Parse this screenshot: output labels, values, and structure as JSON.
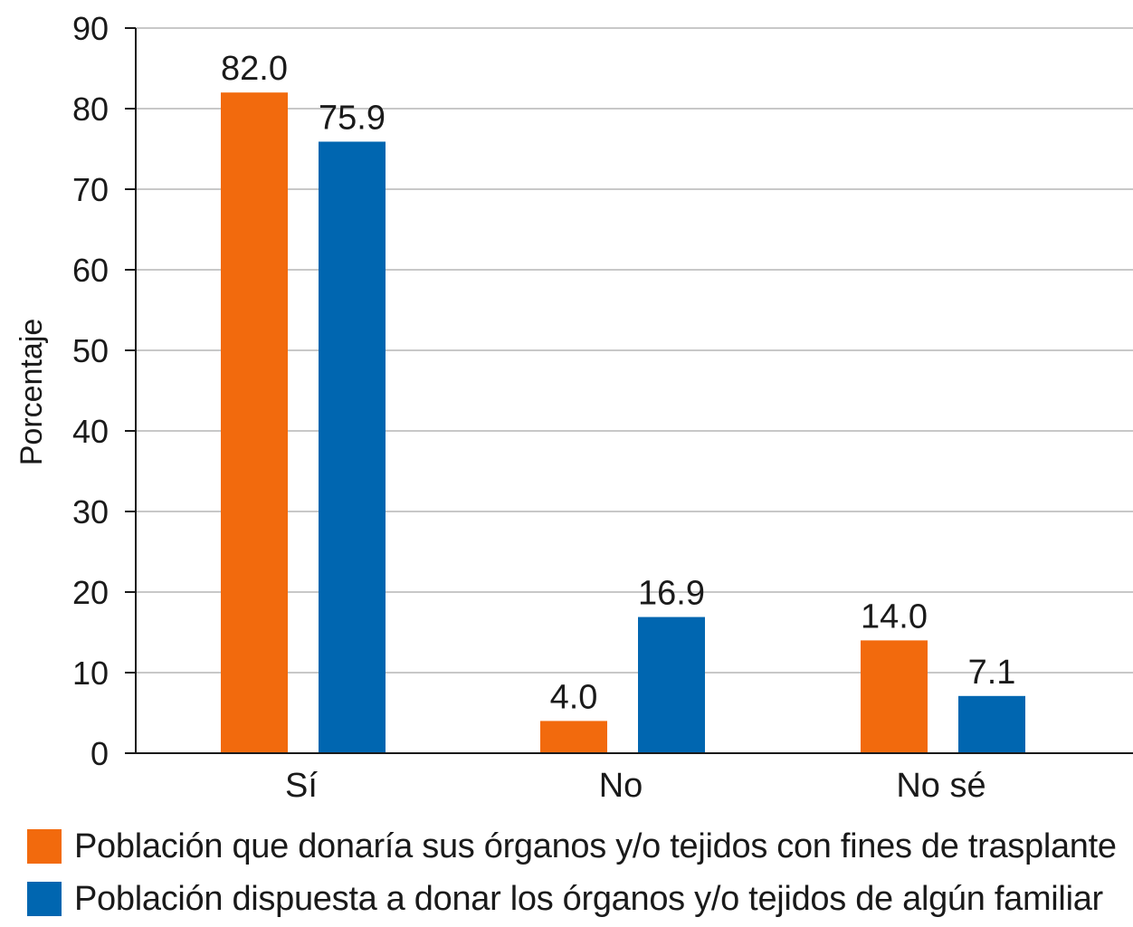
{
  "chart_data": {
    "type": "bar",
    "ylabel": "Porcentaje",
    "ylim": [
      0,
      90
    ],
    "yticks": [
      0,
      10,
      20,
      30,
      40,
      50,
      60,
      70,
      80,
      90
    ],
    "grid": true,
    "categories": [
      "Sí",
      "No",
      "No sé"
    ],
    "series": [
      {
        "name": "Población que donaría sus órganos y/o tejidos con fines de trasplante",
        "color": "#f26a0d",
        "values": [
          82.0,
          4.0,
          14.0
        ],
        "labels": [
          "82.0",
          "4.0",
          "14.0"
        ]
      },
      {
        "name": "Población dispuesta a donar los órganos y/o tejidos de algún familiar",
        "color": "#0066b0",
        "values": [
          75.9,
          16.9,
          7.1
        ],
        "labels": [
          "75.9",
          "16.9",
          "7.1"
        ]
      }
    ],
    "legend_position": "bottom"
  }
}
